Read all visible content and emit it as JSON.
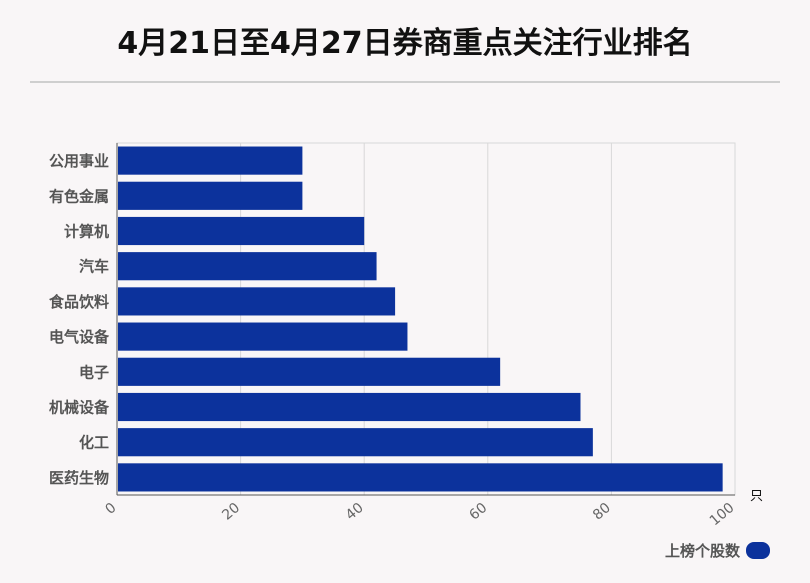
{
  "title": "4月21日至4月27日券商重点关注行业排名",
  "chart_data": {
    "type": "bar",
    "orientation": "horizontal",
    "categories": [
      "公用事业",
      "有色金属",
      "计算机",
      "汽车",
      "食品饮料",
      "电气设备",
      "电子",
      "机械设备",
      "化工",
      "医药生物"
    ],
    "series": [
      {
        "name": "上榜个股数",
        "values": [
          30,
          30,
          40,
          42,
          45,
          47,
          62,
          75,
          77,
          98
        ]
      }
    ],
    "xlim": [
      0,
      100
    ],
    "xticks": [
      0,
      20,
      40,
      60,
      80,
      100
    ],
    "xunit": "只",
    "grid": true,
    "legend_position": "bottom-right",
    "bar_color": "#0c329c"
  }
}
